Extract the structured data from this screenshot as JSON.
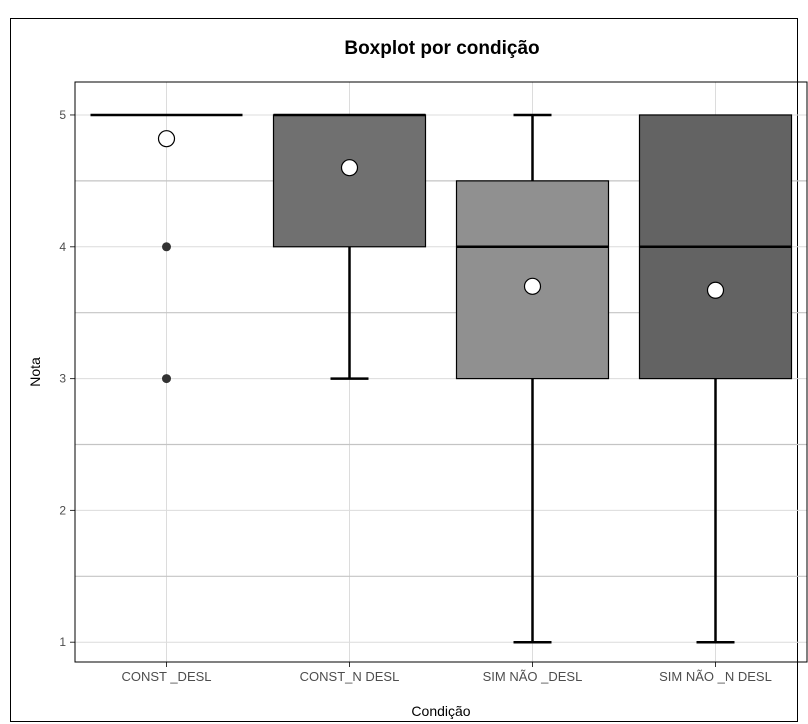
{
  "chart_data": {
    "type": "boxplot",
    "title": "Boxplot por condição",
    "xlabel": "Condição",
    "ylabel": "Nota",
    "ylim": [
      0.85,
      5.25
    ],
    "yticks": [
      1,
      2,
      3,
      4,
      5
    ],
    "grid": true,
    "categories": [
      "CONST _DESL",
      "CONST_N DESL",
      "SIM NÃO _DESL",
      "SIM NÃO _N DESL"
    ],
    "boxes": [
      {
        "category": "CONST _DESL",
        "whisker_low": 5,
        "q1": 5,
        "median": 5,
        "q3": 5,
        "whisker_high": 5,
        "mean": 4.82,
        "outliers": [
          4,
          3
        ],
        "fill": "#9a9a9a"
      },
      {
        "category": "CONST_N DESL",
        "whisker_low": 3,
        "q1": 4,
        "median": 5,
        "q3": 5,
        "whisker_high": 5,
        "mean": 4.6,
        "outliers": [],
        "fill": "#707070"
      },
      {
        "category": "SIM NÃO _DESL",
        "whisker_low": 1,
        "q1": 3,
        "median": 4,
        "q3": 4.5,
        "whisker_high": 5,
        "mean": 3.7,
        "outliers": [],
        "fill": "#909090"
      },
      {
        "category": "SIM NÃO _N DESL",
        "whisker_low": 1,
        "q1": 3,
        "median": 4,
        "q3": 5,
        "whisker_high": 5,
        "mean": 3.67,
        "outliers": [],
        "fill": "#636363"
      }
    ]
  }
}
